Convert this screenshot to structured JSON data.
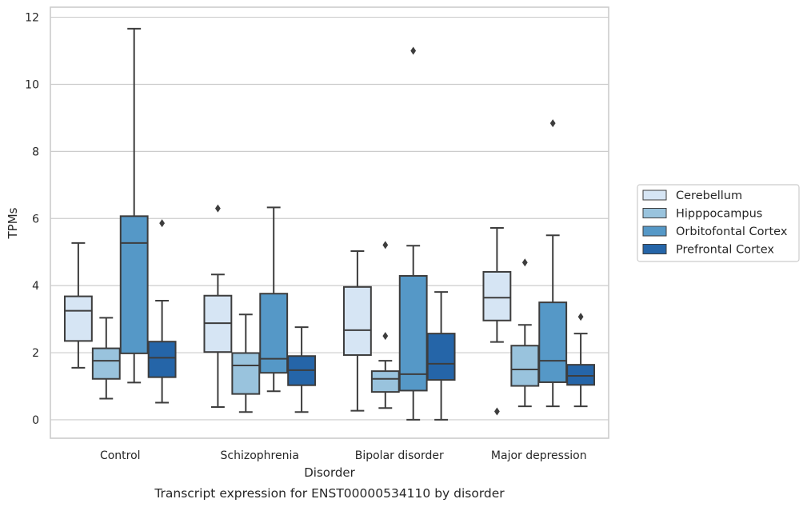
{
  "chart_data": {
    "type": "boxplot",
    "title": "",
    "caption": "Transcript expression for ENST00000534110 by disorder",
    "xlabel": "Disorder",
    "ylabel": "TPMs",
    "ylim": [
      -0.55,
      12.3
    ],
    "yticks": [
      0,
      2,
      4,
      6,
      8,
      10,
      12
    ],
    "grid": "horizontal",
    "legend_position": "right",
    "categories": [
      "Control",
      "Schizophrenia",
      "Bipolar disorder",
      "Major depression"
    ],
    "series": [
      {
        "name": "Cerebellum",
        "color": "#d6e5f4",
        "boxes": [
          {
            "whisker_low": 1.55,
            "q1": 2.35,
            "median": 3.25,
            "q3": 3.68,
            "whisker_high": 5.27,
            "outliers": []
          },
          {
            "whisker_low": 0.38,
            "q1": 2.02,
            "median": 2.88,
            "q3": 3.7,
            "whisker_high": 4.33,
            "outliers": [
              6.3
            ]
          },
          {
            "whisker_low": 0.27,
            "q1": 1.93,
            "median": 2.67,
            "q3": 3.96,
            "whisker_high": 5.03,
            "outliers": []
          },
          {
            "whisker_low": 2.32,
            "q1": 2.96,
            "median": 3.64,
            "q3": 4.41,
            "whisker_high": 5.72,
            "outliers": [
              0.25
            ]
          }
        ]
      },
      {
        "name": "Hipppocampus",
        "color": "#99c3dd",
        "boxes": [
          {
            "whisker_low": 0.63,
            "q1": 1.22,
            "median": 1.76,
            "q3": 2.13,
            "whisker_high": 3.04,
            "outliers": []
          },
          {
            "whisker_low": 0.23,
            "q1": 0.77,
            "median": 1.62,
            "q3": 1.99,
            "whisker_high": 3.14,
            "outliers": []
          },
          {
            "whisker_low": 0.35,
            "q1": 0.83,
            "median": 1.22,
            "q3": 1.45,
            "whisker_high": 1.76,
            "outliers": [
              5.21,
              2.5
            ]
          },
          {
            "whisker_low": 0.4,
            "q1": 1.01,
            "median": 1.5,
            "q3": 2.21,
            "whisker_high": 2.83,
            "outliers": [
              4.69
            ]
          }
        ]
      },
      {
        "name": "Orbitofontal Cortex",
        "color": "#5598c7",
        "boxes": [
          {
            "whisker_low": 1.11,
            "q1": 1.98,
            "median": 5.27,
            "q3": 6.07,
            "whisker_high": 11.66,
            "outliers": []
          },
          {
            "whisker_low": 0.85,
            "q1": 1.4,
            "median": 1.82,
            "q3": 3.76,
            "whisker_high": 6.33,
            "outliers": []
          },
          {
            "whisker_low": 0.0,
            "q1": 0.87,
            "median": 1.36,
            "q3": 4.29,
            "whisker_high": 5.19,
            "outliers": [
              11.0
            ]
          },
          {
            "whisker_low": 0.4,
            "q1": 1.12,
            "median": 1.76,
            "q3": 3.5,
            "whisker_high": 5.5,
            "outliers": [
              8.84
            ]
          }
        ]
      },
      {
        "name": "Prefrontal Cortex",
        "color": "#2565a8",
        "boxes": [
          {
            "whisker_low": 0.51,
            "q1": 1.27,
            "median": 1.85,
            "q3": 2.33,
            "whisker_high": 3.55,
            "outliers": [
              5.86
            ]
          },
          {
            "whisker_low": 0.23,
            "q1": 1.03,
            "median": 1.48,
            "q3": 1.9,
            "whisker_high": 2.76,
            "outliers": []
          },
          {
            "whisker_low": 0.0,
            "q1": 1.19,
            "median": 1.67,
            "q3": 2.57,
            "whisker_high": 3.81,
            "outliers": []
          },
          {
            "whisker_low": 0.4,
            "q1": 1.04,
            "median": 1.31,
            "q3": 1.64,
            "whisker_high": 2.57,
            "outliers": [
              3.07
            ]
          }
        ]
      }
    ]
  }
}
